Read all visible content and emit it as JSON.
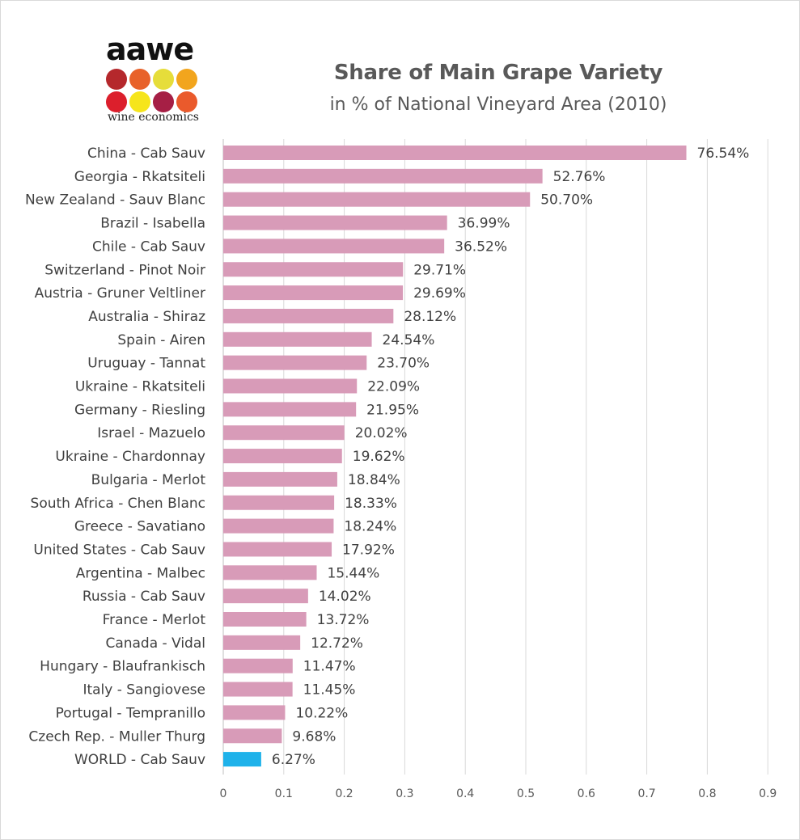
{
  "logo": {
    "word": "aawe",
    "subtitle": "wine economics",
    "dot_colors": [
      "#b5282c",
      "#e8622a",
      "#e6dd3a",
      "#f2a51d",
      "#dc1f2c",
      "#f6e51b",
      "#a61f45",
      "#ea5a2c"
    ]
  },
  "chart_data": {
    "type": "bar",
    "orientation": "horizontal",
    "title": "Share of Main Grape Variety",
    "subtitle": "in % of National Vineyard Area (2010)",
    "xlabel": "",
    "ylabel": "",
    "xlim": [
      0,
      0.9
    ],
    "xticks": [
      0,
      0.1,
      0.2,
      0.3,
      0.4,
      0.5,
      0.6,
      0.7,
      0.8,
      0.9
    ],
    "tick_labels": [
      "0",
      "0.1",
      "0.2",
      "0.3",
      "0.4",
      "0.5",
      "0.6",
      "0.7",
      "0.8",
      "0.9"
    ],
    "grid": "vertical",
    "bar_color": "#d89bb8",
    "highlight_color": "#1fb2ea",
    "highlight_category": "WORLD - Cab Sauv",
    "categories": [
      "China - Cab Sauv",
      "Georgia - Rkatsiteli",
      "New Zealand - Sauv Blanc",
      "Brazil - Isabella",
      "Chile - Cab Sauv",
      "Switzerland - Pinot Noir",
      "Austria - Gruner Veltliner",
      "Australia - Shiraz",
      "Spain - Airen",
      "Uruguay - Tannat",
      "Ukraine - Rkatsiteli",
      "Germany - Riesling",
      "Israel - Mazuelo",
      "Ukraine - Chardonnay",
      "Bulgaria - Merlot",
      "South Africa - Chen Blanc",
      "Greece - Savatiano",
      "United States - Cab Sauv",
      "Argentina - Malbec",
      "Russia - Cab Sauv",
      "France - Merlot",
      "Canada - Vidal",
      "Hungary - Blaufrankisch",
      "Italy - Sangiovese",
      "Portugal - Tempranillo",
      "Czech Rep. - Muller Thurg",
      "WORLD - Cab Sauv"
    ],
    "values": [
      0.7654,
      0.5276,
      0.507,
      0.3699,
      0.3652,
      0.2971,
      0.2969,
      0.2812,
      0.2454,
      0.237,
      0.2209,
      0.2195,
      0.2002,
      0.1962,
      0.1884,
      0.1833,
      0.1824,
      0.1792,
      0.1544,
      0.1402,
      0.1372,
      0.1272,
      0.1147,
      0.1145,
      0.1022,
      0.0968,
      0.0627
    ],
    "value_labels": [
      "76.54%",
      "52.76%",
      "50.70%",
      "36.99%",
      "36.52%",
      "29.71%",
      "29.69%",
      "28.12%",
      "24.54%",
      "23.70%",
      "22.09%",
      "21.95%",
      "20.02%",
      "19.62%",
      "18.84%",
      "18.33%",
      "18.24%",
      "17.92%",
      "15.44%",
      "14.02%",
      "13.72%",
      "12.72%",
      "11.47%",
      "11.45%",
      "10.22%",
      "9.68%",
      "6.27%"
    ]
  }
}
